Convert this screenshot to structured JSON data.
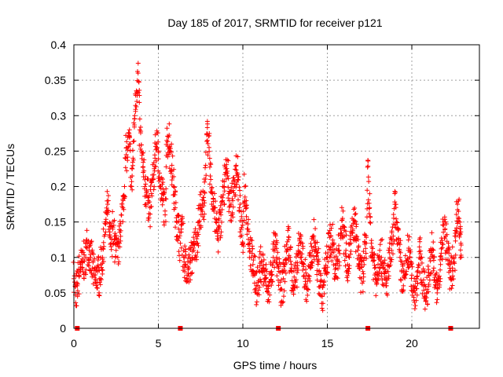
{
  "chart_data": {
    "type": "scatter",
    "title": "Day 185 of 2017, SRMTID for receiver p121",
    "xlabel": "GPS time / hours",
    "ylabel": "SRMTID / TECUs",
    "xlim": [
      0,
      24
    ],
    "ylim": [
      0,
      0.4
    ],
    "x_ticks": [
      0,
      5,
      10,
      15,
      20
    ],
    "x_tick_labels": [
      "0",
      "5",
      "10",
      "15",
      "20"
    ],
    "y_ticks": [
      0,
      0.05,
      0.1,
      0.15,
      0.2,
      0.25,
      0.3,
      0.35,
      0.4
    ],
    "y_tick_labels": [
      "0",
      "0.05",
      "0.1",
      "0.15",
      "0.2",
      "0.25",
      "0.3",
      "0.35",
      "0.4"
    ],
    "grid": true,
    "marker": "+",
    "color": "#ff0000",
    "series": [
      {
        "name": "SRMTID",
        "points": [
          [
            0.0,
            0.07
          ],
          [
            0.1,
            0.047
          ],
          [
            0.2,
            0.06
          ],
          [
            0.3,
            0.075
          ],
          [
            0.4,
            0.09
          ],
          [
            0.5,
            0.085
          ],
          [
            0.6,
            0.095
          ],
          [
            0.7,
            0.1
          ],
          [
            0.8,
            0.12
          ],
          [
            0.9,
            0.11
          ],
          [
            1.0,
            0.1
          ],
          [
            1.1,
            0.085
          ],
          [
            1.2,
            0.075
          ],
          [
            1.3,
            0.065
          ],
          [
            1.4,
            0.08
          ],
          [
            1.5,
            0.07
          ],
          [
            1.6,
            0.09
          ],
          [
            1.7,
            0.1
          ],
          [
            1.8,
            0.13
          ],
          [
            1.9,
            0.15
          ],
          [
            2.0,
            0.175
          ],
          [
            2.1,
            0.13
          ],
          [
            2.2,
            0.12
          ],
          [
            2.3,
            0.14
          ],
          [
            2.4,
            0.125
          ],
          [
            2.5,
            0.11
          ],
          [
            2.6,
            0.1
          ],
          [
            2.7,
            0.12
          ],
          [
            2.8,
            0.16
          ],
          [
            2.9,
            0.17
          ],
          [
            3.0,
            0.2
          ],
          [
            3.1,
            0.245
          ],
          [
            3.2,
            0.255
          ],
          [
            3.3,
            0.26
          ],
          [
            3.4,
            0.2
          ],
          [
            3.5,
            0.24
          ],
          [
            3.6,
            0.3
          ],
          [
            3.7,
            0.335
          ],
          [
            3.8,
            0.36
          ],
          [
            3.9,
            0.28
          ],
          [
            4.0,
            0.25
          ],
          [
            4.1,
            0.22
          ],
          [
            4.2,
            0.2
          ],
          [
            4.3,
            0.195
          ],
          [
            4.4,
            0.18
          ],
          [
            4.5,
            0.17
          ],
          [
            4.6,
            0.19
          ],
          [
            4.7,
            0.21
          ],
          [
            4.8,
            0.24
          ],
          [
            4.9,
            0.26
          ],
          [
            5.0,
            0.25
          ],
          [
            5.1,
            0.2
          ],
          [
            5.2,
            0.19
          ],
          [
            5.3,
            0.18
          ],
          [
            5.4,
            0.16
          ],
          [
            5.5,
            0.265
          ],
          [
            5.6,
            0.27
          ],
          [
            5.7,
            0.25
          ],
          [
            5.8,
            0.23
          ],
          [
            5.9,
            0.2
          ],
          [
            6.0,
            0.17
          ],
          [
            6.1,
            0.15
          ],
          [
            6.2,
            0.14
          ],
          [
            6.3,
            0.12
          ],
          [
            6.4,
            0.15
          ],
          [
            6.5,
            0.1
          ],
          [
            6.6,
            0.09
          ],
          [
            6.7,
            0.075
          ],
          [
            6.8,
            0.085
          ],
          [
            6.9,
            0.095
          ],
          [
            7.0,
            0.1
          ],
          [
            7.1,
            0.11
          ],
          [
            7.2,
            0.12
          ],
          [
            7.3,
            0.13
          ],
          [
            7.4,
            0.15
          ],
          [
            7.5,
            0.17
          ],
          [
            7.6,
            0.165
          ],
          [
            7.7,
            0.18
          ],
          [
            7.8,
            0.23
          ],
          [
            7.9,
            0.265
          ],
          [
            8.0,
            0.255
          ],
          [
            8.1,
            0.21
          ],
          [
            8.2,
            0.19
          ],
          [
            8.3,
            0.17
          ],
          [
            8.4,
            0.15
          ],
          [
            8.5,
            0.13
          ],
          [
            8.6,
            0.14
          ],
          [
            8.7,
            0.16
          ],
          [
            8.8,
            0.18
          ],
          [
            8.9,
            0.2
          ],
          [
            9.0,
            0.22
          ],
          [
            9.1,
            0.215
          ],
          [
            9.2,
            0.19
          ],
          [
            9.3,
            0.175
          ],
          [
            9.4,
            0.18
          ],
          [
            9.5,
            0.2
          ],
          [
            9.6,
            0.23
          ],
          [
            9.7,
            0.21
          ],
          [
            9.8,
            0.17
          ],
          [
            9.9,
            0.14
          ],
          [
            10.0,
            0.12
          ],
          [
            10.1,
            0.2
          ],
          [
            10.2,
            0.18
          ],
          [
            10.3,
            0.14
          ],
          [
            10.4,
            0.12
          ],
          [
            10.5,
            0.1
          ],
          [
            10.6,
            0.09
          ],
          [
            10.7,
            0.075
          ],
          [
            10.8,
            0.06
          ],
          [
            10.9,
            0.065
          ],
          [
            11.0,
            0.08
          ],
          [
            11.1,
            0.095
          ],
          [
            11.2,
            0.085
          ],
          [
            11.3,
            0.075
          ],
          [
            11.4,
            0.06
          ],
          [
            11.5,
            0.05
          ],
          [
            11.6,
            0.065
          ],
          [
            11.7,
            0.08
          ],
          [
            11.8,
            0.1
          ],
          [
            11.9,
            0.115
          ],
          [
            12.0,
            0.1
          ],
          [
            12.1,
            0.085
          ],
          [
            12.2,
            0.065
          ],
          [
            12.3,
            0.055
          ],
          [
            12.4,
            0.07
          ],
          [
            12.5,
            0.09
          ],
          [
            12.6,
            0.11
          ],
          [
            12.7,
            0.125
          ],
          [
            12.8,
            0.1
          ],
          [
            12.9,
            0.08
          ],
          [
            13.0,
            0.06
          ],
          [
            13.1,
            0.065
          ],
          [
            13.2,
            0.085
          ],
          [
            13.3,
            0.105
          ],
          [
            13.4,
            0.12
          ],
          [
            13.5,
            0.105
          ],
          [
            13.6,
            0.09
          ],
          [
            13.7,
            0.07
          ],
          [
            13.8,
            0.055
          ],
          [
            13.9,
            0.07
          ],
          [
            14.0,
            0.09
          ],
          [
            14.1,
            0.11
          ],
          [
            14.2,
            0.13
          ],
          [
            14.3,
            0.115
          ],
          [
            14.4,
            0.095
          ],
          [
            14.5,
            0.08
          ],
          [
            14.6,
            0.06
          ],
          [
            14.7,
            0.045
          ],
          [
            14.8,
            0.065
          ],
          [
            14.9,
            0.085
          ],
          [
            15.0,
            0.1
          ],
          [
            15.1,
            0.115
          ],
          [
            15.2,
            0.13
          ],
          [
            15.3,
            0.12
          ],
          [
            15.4,
            0.1
          ],
          [
            15.5,
            0.085
          ],
          [
            15.6,
            0.095
          ],
          [
            15.7,
            0.11
          ],
          [
            15.8,
            0.14
          ],
          [
            15.9,
            0.155
          ],
          [
            16.0,
            0.13
          ],
          [
            16.1,
            0.11
          ],
          [
            16.2,
            0.09
          ],
          [
            16.3,
            0.1
          ],
          [
            16.4,
            0.12
          ],
          [
            16.5,
            0.14
          ],
          [
            16.6,
            0.15
          ],
          [
            16.7,
            0.13
          ],
          [
            16.8,
            0.11
          ],
          [
            16.9,
            0.09
          ],
          [
            17.0,
            0.07
          ],
          [
            17.1,
            0.08
          ],
          [
            17.2,
            0.1
          ],
          [
            17.3,
            0.12
          ],
          [
            17.4,
            0.237
          ],
          [
            17.5,
            0.17
          ],
          [
            17.6,
            0.12
          ],
          [
            17.7,
            0.1
          ],
          [
            17.8,
            0.085
          ],
          [
            17.9,
            0.07
          ],
          [
            18.0,
            0.09
          ],
          [
            18.1,
            0.11
          ],
          [
            18.2,
            0.1
          ],
          [
            18.3,
            0.085
          ],
          [
            18.4,
            0.07
          ],
          [
            18.5,
            0.06
          ],
          [
            18.6,
            0.08
          ],
          [
            18.7,
            0.1
          ],
          [
            18.8,
            0.11
          ],
          [
            18.9,
            0.13
          ],
          [
            19.0,
            0.175
          ],
          [
            19.1,
            0.15
          ],
          [
            19.2,
            0.12
          ],
          [
            19.3,
            0.1
          ],
          [
            19.4,
            0.08
          ],
          [
            19.5,
            0.06
          ],
          [
            19.6,
            0.075
          ],
          [
            19.7,
            0.095
          ],
          [
            19.8,
            0.11
          ],
          [
            19.9,
            0.09
          ],
          [
            20.0,
            0.075
          ],
          [
            20.1,
            0.06
          ],
          [
            20.2,
            0.05
          ],
          [
            20.3,
            0.07
          ],
          [
            20.4,
            0.09
          ],
          [
            20.5,
            0.105
          ],
          [
            20.6,
            0.08
          ],
          [
            20.7,
            0.06
          ],
          [
            20.8,
            0.045
          ],
          [
            20.9,
            0.055
          ],
          [
            21.0,
            0.075
          ],
          [
            21.1,
            0.095
          ],
          [
            21.2,
            0.11
          ],
          [
            21.3,
            0.085
          ],
          [
            21.4,
            0.065
          ],
          [
            21.5,
            0.05
          ],
          [
            21.6,
            0.07
          ],
          [
            21.7,
            0.09
          ],
          [
            21.8,
            0.12
          ],
          [
            21.9,
            0.15
          ],
          [
            22.0,
            0.13
          ],
          [
            22.1,
            0.11
          ],
          [
            22.2,
            0.09
          ],
          [
            22.3,
            0.07
          ],
          [
            22.4,
            0.085
          ],
          [
            22.5,
            0.1
          ],
          [
            22.6,
            0.13
          ],
          [
            22.7,
            0.175
          ],
          [
            22.8,
            0.155
          ],
          [
            22.9,
            0.12
          ]
        ]
      }
    ],
    "baseline_markers_x": [
      0.2,
      6.3,
      12.1,
      17.4,
      22.3
    ]
  }
}
